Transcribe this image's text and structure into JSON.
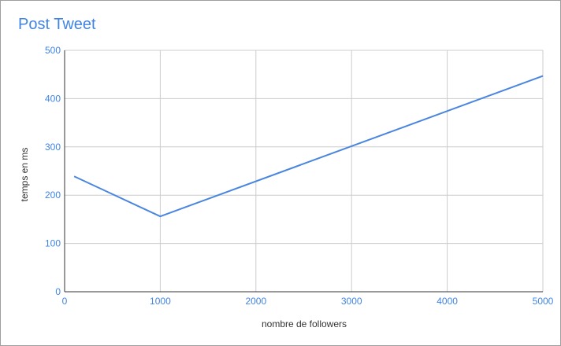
{
  "chart_data": {
    "type": "line",
    "title": "Post Tweet",
    "xlabel": "nombre de followers",
    "ylabel": "temps en ms",
    "xlim": [
      0,
      5000
    ],
    "ylim": [
      0,
      500
    ],
    "x_ticks": [
      0,
      1000,
      2000,
      3000,
      4000,
      5000
    ],
    "y_ticks": [
      0,
      100,
      200,
      300,
      400,
      500
    ],
    "grid": true,
    "legend": "none",
    "series": [
      {
        "color": "#4a86e0",
        "points": [
          {
            "x": 100,
            "y": 239
          },
          {
            "x": 1000,
            "y": 156
          },
          {
            "x": 5000,
            "y": 447
          }
        ]
      }
    ]
  },
  "colors": {
    "accent": "#3f84e5",
    "grid": "#cccccc",
    "axis": "#333333"
  }
}
